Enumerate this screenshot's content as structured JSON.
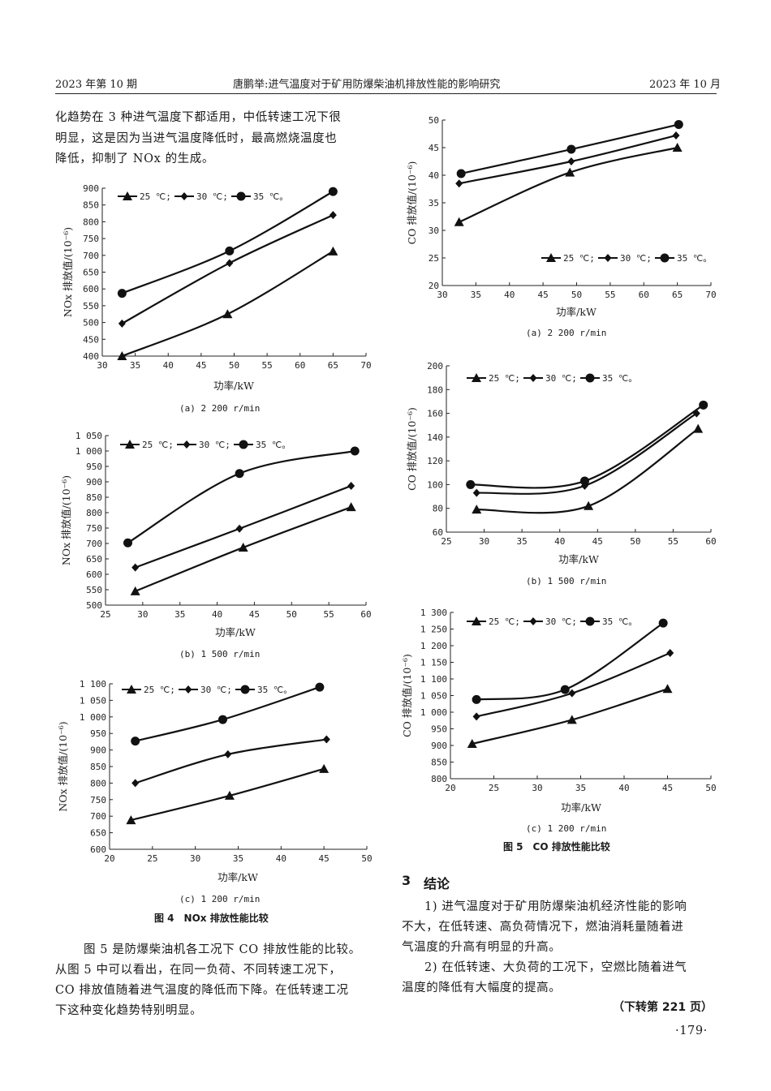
{
  "header": {
    "left": "2023 年第 10 期",
    "center": "唐鹏举:进气温度对于矿用防爆柴油机排放性能的影响研究",
    "right": "2023 年 10 月"
  },
  "left_column": {
    "intro_lines": [
      "化趋势在 3 种进气温度下都适用，中低转速工况下很",
      "明显，这是因为当进气温度降低时，最高燃烧温度也",
      "降低，抑制了 NOx 的生成。"
    ],
    "figure4_caption": "图 4　NOx 排放性能比较",
    "para_lines": [
      "图 5 是防爆柴油机各工况下 CO 排放性能的比较。",
      "从图 5 中可以看出，在同一负荷、不同转速工况下，",
      "CO 排放值随着进气温度的降低而下降。在低转速工况",
      "下这种变化趋势特别明显。"
    ]
  },
  "right_column": {
    "figure5_caption": "图 5　CO 排放性能比较",
    "section_number": "3",
    "section_title": "结论",
    "conclusion_lines": [
      "1) 进气温度对于矿用防爆柴油机经济性能的影响",
      "不大，在低转速、高负荷情况下，燃油消耗量随着进",
      "气温度的升高有明显的升高。",
      "2) 在低转速、大负荷的工况下，空燃比随着进气",
      "温度的降低有大幅度的提高。"
    ],
    "continued": "（下转第 221 页）",
    "page_number": "·179·"
  },
  "chart_data": [
    {
      "id": "nox-a",
      "type": "line",
      "title": "(a)  2 200 r/min",
      "xlabel": "功率/kW",
      "ylabel": "NOx 排放值/(10⁻⁶)",
      "xlim": [
        30,
        70
      ],
      "ylim": [
        400,
        900
      ],
      "xticks": [
        "30",
        "35",
        "40",
        "45",
        "50",
        "55",
        "60",
        "65",
        "70"
      ],
      "yticks": [
        "400",
        "450",
        "500",
        "550",
        "600",
        "650",
        "700",
        "750",
        "800",
        "850",
        "900"
      ],
      "legend": "top-left",
      "grid": false,
      "series": [
        {
          "name": "25 ℃;",
          "marker": "triangle",
          "x": [
            33,
            49,
            65
          ],
          "y": [
            400,
            525,
            712
          ]
        },
        {
          "name": "30 ℃;",
          "marker": "diamond",
          "x": [
            33,
            49.3,
            65
          ],
          "y": [
            497,
            677,
            820
          ]
        },
        {
          "name": "35 ℃。",
          "marker": "circle",
          "x": [
            33,
            49.3,
            65
          ],
          "y": [
            587,
            713,
            890
          ]
        }
      ]
    },
    {
      "id": "nox-b",
      "type": "line",
      "title": "(b)  1 500 r/min",
      "xlabel": "功率/kW",
      "ylabel": "NOx 排放值/(10⁻⁶)",
      "xlim": [
        25,
        60
      ],
      "ylim": [
        500,
        1050
      ],
      "xticks": [
        "25",
        "30",
        "35",
        "40",
        "45",
        "50",
        "55",
        "60"
      ],
      "yticks": [
        "500",
        "550",
        "600",
        "650",
        "700",
        "750",
        "800",
        "850",
        "900",
        "950",
        "1 000",
        "1 050"
      ],
      "legend": "top-left",
      "grid": false,
      "series": [
        {
          "name": "25 ℃;",
          "marker": "triangle",
          "x": [
            29,
            43.5,
            58
          ],
          "y": [
            545,
            687,
            818
          ]
        },
        {
          "name": "30 ℃;",
          "marker": "diamond",
          "x": [
            29,
            43,
            58
          ],
          "y": [
            622,
            748,
            887
          ]
        },
        {
          "name": "35 ℃。",
          "marker": "circle",
          "x": [
            28,
            43,
            58.5
          ],
          "y": [
            702,
            927,
            1000
          ]
        }
      ]
    },
    {
      "id": "nox-c",
      "type": "line",
      "title": "(c)  1 200 r/min",
      "xlabel": "功率/kW",
      "ylabel": "NOx 排放值/(10⁻⁶)",
      "xlim": [
        20,
        50
      ],
      "ylim": [
        600,
        1100
      ],
      "xticks": [
        "20",
        "25",
        "30",
        "35",
        "40",
        "45",
        "50"
      ],
      "yticks": [
        "600",
        "650",
        "700",
        "750",
        "800",
        "850",
        "900",
        "950",
        "1 000",
        "1 050",
        "1 100"
      ],
      "legend": "top-left",
      "grid": false,
      "series": [
        {
          "name": "25 ℃;",
          "marker": "triangle",
          "x": [
            22.5,
            34,
            45
          ],
          "y": [
            688,
            762,
            843
          ]
        },
        {
          "name": "30 ℃;",
          "marker": "diamond",
          "x": [
            23,
            33.8,
            45.3
          ],
          "y": [
            800,
            887,
            932
          ]
        },
        {
          "name": "35 ℃。",
          "marker": "circle",
          "x": [
            23,
            33.2,
            44.5
          ],
          "y": [
            927,
            992,
            1090
          ]
        }
      ]
    },
    {
      "id": "co-a",
      "type": "line",
      "title": "(a)  2 200 r/min",
      "xlabel": "功率/kW",
      "ylabel": "CO 排放值/(10⁻⁶)",
      "xlim": [
        30,
        70
      ],
      "ylim": [
        20,
        50
      ],
      "xticks": [
        "30",
        "35",
        "40",
        "45",
        "50",
        "55",
        "60",
        "65",
        "70"
      ],
      "yticks": [
        "20",
        "25",
        "30",
        "35",
        "40",
        "45",
        "50"
      ],
      "legend": "bottom-right",
      "grid": false,
      "series": [
        {
          "name": "25 ℃;",
          "marker": "triangle",
          "x": [
            32.5,
            49,
            65
          ],
          "y": [
            31.5,
            40.5,
            45
          ]
        },
        {
          "name": "30 ℃;",
          "marker": "diamond",
          "x": [
            32.5,
            49.2,
            64.8
          ],
          "y": [
            38.5,
            42.5,
            47.2
          ]
        },
        {
          "name": "35 ℃。",
          "marker": "circle",
          "x": [
            32.8,
            49.2,
            65.2
          ],
          "y": [
            40.3,
            44.7,
            49.2
          ]
        }
      ]
    },
    {
      "id": "co-b",
      "type": "line",
      "title": "(b)  1 500 r/min",
      "xlabel": "功率/kW",
      "ylabel": "CO 排放值/(10⁻⁶)",
      "xlim": [
        25,
        60
      ],
      "ylim": [
        60,
        200
      ],
      "xticks": [
        "25",
        "30",
        "35",
        "40",
        "45",
        "50",
        "55",
        "60"
      ],
      "yticks": [
        "60",
        "80",
        "100",
        "120",
        "140",
        "160",
        "180",
        "200"
      ],
      "legend": "top-left",
      "grid": false,
      "series": [
        {
          "name": "25 ℃;",
          "marker": "triangle",
          "x": [
            29,
            43.8,
            58.3
          ],
          "y": [
            79,
            82,
            147
          ]
        },
        {
          "name": "30 ℃;",
          "marker": "diamond",
          "x": [
            29,
            43.3,
            58.1
          ],
          "y": [
            93,
            99,
            160
          ]
        },
        {
          "name": "35 ℃。",
          "marker": "circle",
          "x": [
            28.2,
            43.3,
            59
          ],
          "y": [
            100,
            103,
            167
          ]
        }
      ]
    },
    {
      "id": "co-c",
      "type": "line",
      "title": "(c)  1 200 r/min",
      "xlabel": "功率/kW",
      "ylabel": "CO 排放值/(10⁻⁶)",
      "xlim": [
        20,
        50
      ],
      "ylim": [
        800,
        1300
      ],
      "xticks": [
        "20",
        "25",
        "30",
        "35",
        "40",
        "45",
        "50"
      ],
      "yticks": [
        "800",
        "850",
        "900",
        "950",
        "1 000",
        "1 050",
        "1 100",
        "1 150",
        "1 200",
        "1 250",
        "1 300"
      ],
      "legend": "top-left",
      "grid": false,
      "series": [
        {
          "name": "25 ℃;",
          "marker": "triangle",
          "x": [
            22.5,
            34,
            45
          ],
          "y": [
            905,
            977,
            1070
          ]
        },
        {
          "name": "30 ℃;",
          "marker": "diamond",
          "x": [
            23,
            34,
            45.3
          ],
          "y": [
            987,
            1057,
            1178
          ]
        },
        {
          "name": "35 ℃。",
          "marker": "circle",
          "x": [
            23,
            33.2,
            44.5
          ],
          "y": [
            1038,
            1068,
            1268
          ]
        }
      ]
    }
  ]
}
